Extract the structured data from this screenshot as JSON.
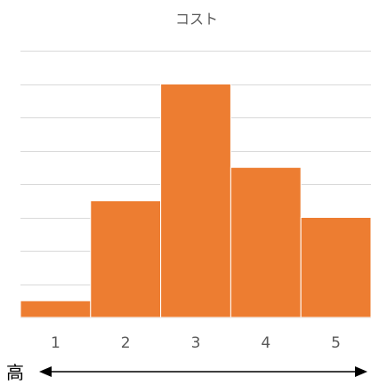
{
  "chart_data": {
    "type": "bar",
    "title": "コスト",
    "categories": [
      "1",
      "2",
      "3",
      "4",
      "5"
    ],
    "values": [
      0.5,
      3.5,
      7,
      4.5,
      3
    ],
    "ylim": [
      0,
      8
    ],
    "ytick_step": 1,
    "grid": true,
    "legend": "none",
    "bar_color": "#ED7D31",
    "gridline_color": "#D9D9D9",
    "tick_label_color": "#595959",
    "direction_axis": {
      "start_label": "高",
      "end_label": "",
      "arrow_color": "#000000"
    }
  }
}
